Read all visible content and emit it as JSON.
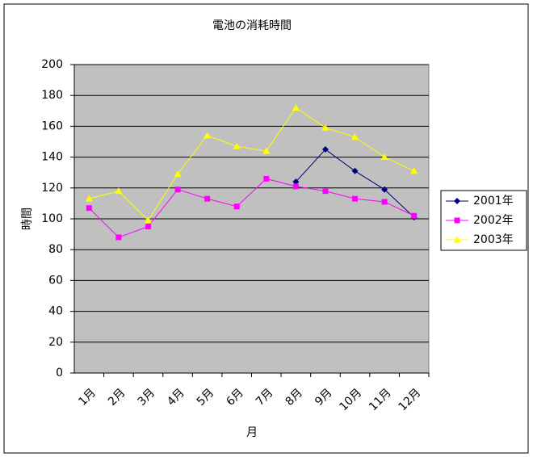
{
  "chart_data": {
    "type": "line",
    "title": "電池の消耗時間",
    "x_label": "月",
    "y_label": "時間",
    "categories": [
      "1月",
      "2月",
      "3月",
      "4月",
      "5月",
      "6月",
      "7月",
      "8月",
      "9月",
      "10月",
      "11月",
      "12月"
    ],
    "series": [
      {
        "name": "2001年",
        "color": "#000080",
        "marker": "diamond",
        "values": [
          null,
          null,
          null,
          null,
          null,
          null,
          null,
          124,
          145,
          131,
          119,
          101
        ]
      },
      {
        "name": "2002年",
        "color": "#ff00ff",
        "marker": "square",
        "values": [
          107,
          88,
          95,
          119,
          113,
          108,
          126,
          121,
          118,
          113,
          111,
          102
        ]
      },
      {
        "name": "2003年",
        "color": "#ffff00",
        "marker": "triangle",
        "values": [
          113,
          118,
          99,
          129,
          154,
          147,
          144,
          172,
          159,
          153,
          140,
          131
        ]
      }
    ],
    "ylim": [
      0,
      200
    ],
    "yticks": [
      0,
      20,
      40,
      60,
      80,
      100,
      120,
      140,
      160,
      180,
      200
    ],
    "grid": true,
    "legend": "right",
    "plot_background": "#c0c0c0"
  }
}
